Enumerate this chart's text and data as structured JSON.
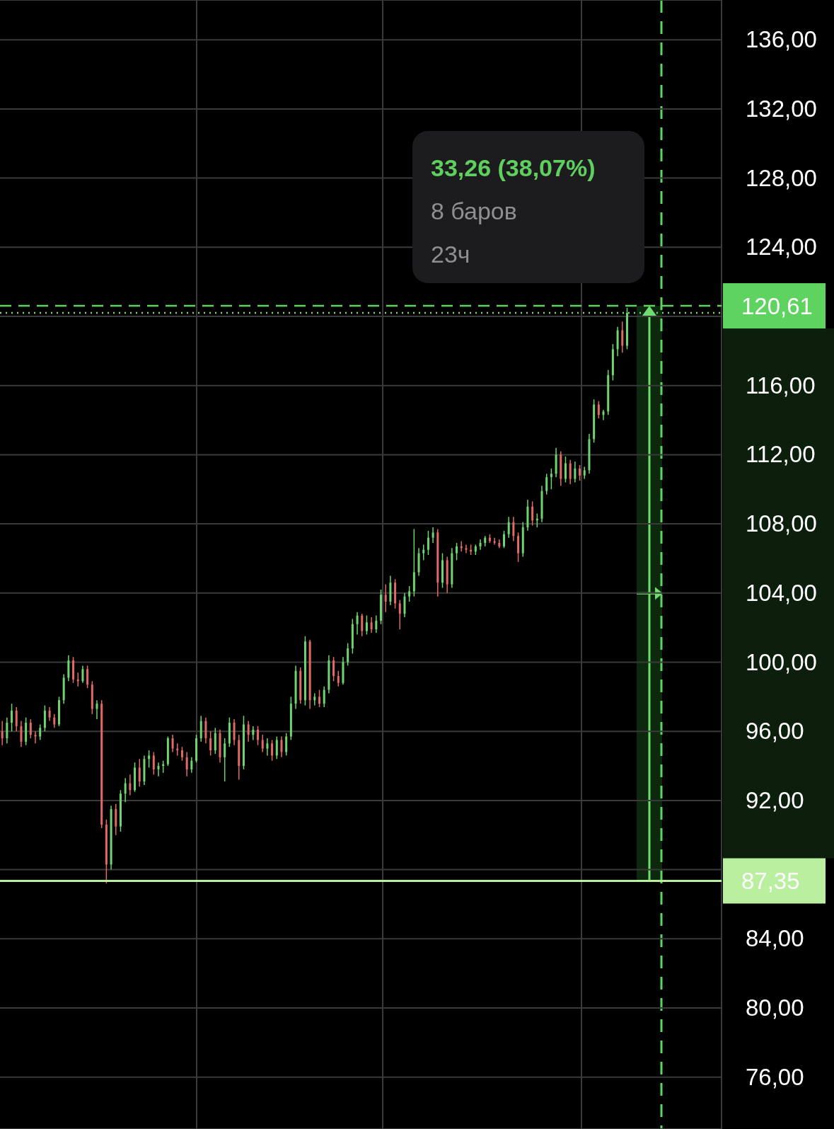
{
  "chart_data": {
    "type": "candlestick",
    "categories": [
      null,
      null,
      null,
      null,
      null,
      null,
      null,
      null,
      null,
      null,
      null,
      null,
      null,
      null,
      null,
      null,
      null,
      null,
      null,
      null,
      null,
      null,
      null,
      null,
      null,
      null,
      null,
      null,
      null,
      null,
      null,
      null,
      null,
      null,
      null,
      null,
      null,
      null,
      null,
      null,
      null,
      null,
      null,
      null,
      null,
      null,
      null,
      null,
      null,
      null,
      null,
      null,
      null,
      null,
      null,
      null,
      null,
      null,
      null,
      null,
      null,
      null,
      null,
      null,
      null,
      null,
      null,
      null,
      null,
      null,
      null,
      null,
      null,
      null,
      null,
      null,
      null,
      null,
      null,
      null,
      null,
      null,
      null,
      null,
      null,
      null,
      null,
      null,
      null,
      null,
      null,
      null,
      null,
      null,
      null,
      null,
      null,
      null,
      null,
      null,
      null,
      null,
      null,
      null,
      null,
      null,
      null,
      null,
      null,
      null,
      null,
      null,
      null,
      null,
      null,
      null,
      null,
      null,
      null,
      null,
      null,
      null,
      null,
      null,
      null,
      null,
      null,
      null,
      null,
      null,
      null,
      null,
      null
    ],
    "ohlc": [
      [
        96.0,
        96.6,
        95.2,
        95.6
      ],
      [
        95.6,
        96.8,
        95.3,
        96.5
      ],
      [
        96.5,
        97.6,
        96.0,
        97.2
      ],
      [
        97.2,
        97.4,
        96.0,
        96.3
      ],
      [
        96.3,
        96.6,
        95.1,
        95.4
      ],
      [
        95.4,
        96.8,
        95.2,
        96.5
      ],
      [
        96.5,
        96.7,
        95.6,
        95.8
      ],
      [
        95.8,
        96.0,
        95.3,
        95.7
      ],
      [
        95.7,
        96.4,
        95.5,
        96.2
      ],
      [
        96.2,
        97.5,
        96.0,
        97.2
      ],
      [
        97.2,
        97.4,
        96.6,
        96.8
      ],
      [
        96.8,
        97.0,
        96.2,
        96.4
      ],
      [
        96.4,
        98.0,
        96.3,
        97.8
      ],
      [
        97.8,
        99.3,
        97.6,
        99.1
      ],
      [
        99.1,
        100.4,
        98.9,
        100.1
      ],
      [
        100.1,
        100.3,
        98.8,
        99.0
      ],
      [
        99.0,
        99.4,
        98.6,
        98.9
      ],
      [
        98.9,
        99.8,
        98.8,
        99.6
      ],
      [
        99.6,
        99.8,
        98.5,
        98.7
      ],
      [
        98.7,
        98.9,
        97.0,
        97.3
      ],
      [
        97.3,
        97.8,
        96.7,
        97.6
      ],
      [
        97.6,
        97.8,
        90.4,
        90.6
      ],
      [
        90.6,
        90.9,
        87.2,
        88.3
      ],
      [
        88.3,
        91.7,
        88.0,
        91.5
      ],
      [
        91.5,
        91.8,
        90.0,
        90.5
      ],
      [
        90.5,
        92.6,
        90.2,
        92.4
      ],
      [
        92.4,
        93.3,
        91.9,
        93.0
      ],
      [
        93.0,
        93.5,
        92.3,
        92.6
      ],
      [
        92.6,
        94.2,
        92.5,
        93.9
      ],
      [
        93.9,
        94.4,
        92.8,
        93.1
      ],
      [
        93.1,
        94.6,
        92.9,
        94.4
      ],
      [
        94.4,
        94.9,
        93.9,
        94.6
      ],
      [
        94.6,
        94.8,
        93.5,
        93.8
      ],
      [
        93.8,
        94.2,
        93.4,
        94.0
      ],
      [
        94.0,
        94.3,
        93.6,
        94.1
      ],
      [
        94.1,
        95.7,
        94.0,
        95.6
      ],
      [
        95.6,
        95.8,
        94.8,
        95.0
      ],
      [
        95.0,
        95.3,
        94.6,
        94.9
      ],
      [
        94.9,
        95.1,
        94.3,
        94.5
      ],
      [
        94.5,
        94.8,
        93.4,
        93.8
      ],
      [
        93.8,
        94.5,
        93.6,
        94.3
      ],
      [
        94.3,
        95.8,
        94.2,
        95.6
      ],
      [
        95.6,
        96.9,
        95.4,
        96.6
      ],
      [
        96.6,
        96.8,
        95.3,
        95.6
      ],
      [
        95.6,
        96.0,
        94.6,
        94.9
      ],
      [
        94.9,
        96.2,
        94.7,
        95.9
      ],
      [
        95.9,
        96.1,
        94.2,
        94.5
      ],
      [
        94.5,
        95.6,
        93.1,
        95.3
      ],
      [
        95.3,
        96.8,
        95.1,
        96.5
      ],
      [
        96.5,
        96.7,
        95.2,
        95.5
      ],
      [
        95.5,
        95.8,
        93.2,
        94.0
      ],
      [
        94.0,
        96.9,
        93.8,
        96.4
      ],
      [
        96.4,
        96.6,
        95.4,
        95.8
      ],
      [
        95.8,
        96.3,
        95.5,
        96.1
      ],
      [
        96.1,
        96.3,
        95.2,
        95.5
      ],
      [
        95.5,
        95.8,
        94.8,
        95.0
      ],
      [
        95.0,
        95.6,
        94.6,
        95.3
      ],
      [
        95.3,
        95.5,
        94.3,
        94.6
      ],
      [
        94.6,
        95.7,
        94.4,
        95.5
      ],
      [
        95.5,
        95.7,
        94.5,
        94.8
      ],
      [
        94.8,
        95.9,
        94.6,
        95.7
      ],
      [
        95.7,
        98.0,
        95.5,
        97.6
      ],
      [
        97.6,
        99.8,
        97.3,
        99.5
      ],
      [
        99.5,
        99.7,
        97.6,
        97.8
      ],
      [
        97.8,
        101.5,
        97.5,
        101.2
      ],
      [
        101.2,
        101.3,
        97.3,
        97.8
      ],
      [
        97.8,
        98.2,
        97.5,
        98.0
      ],
      [
        98.0,
        98.4,
        97.4,
        97.6
      ],
      [
        97.6,
        98.6,
        97.4,
        98.4
      ],
      [
        98.4,
        100.4,
        98.2,
        100.1
      ],
      [
        100.1,
        100.3,
        98.9,
        99.2
      ],
      [
        99.2,
        99.5,
        98.6,
        98.8
      ],
      [
        98.8,
        100.3,
        98.7,
        100.0
      ],
      [
        100.0,
        101.1,
        99.8,
        100.8
      ],
      [
        100.8,
        102.5,
        100.5,
        102.2
      ],
      [
        102.2,
        102.9,
        101.6,
        102.7
      ],
      [
        102.7,
        102.8,
        101.5,
        101.8
      ],
      [
        101.8,
        102.7,
        101.6,
        102.3
      ],
      [
        102.3,
        102.6,
        101.7,
        101.9
      ],
      [
        101.9,
        102.7,
        101.7,
        102.4
      ],
      [
        102.4,
        104.2,
        102.2,
        103.9
      ],
      [
        103.9,
        104.5,
        102.9,
        103.5
      ],
      [
        103.5,
        105.0,
        103.3,
        104.6
      ],
      [
        104.6,
        104.8,
        103.1,
        103.4
      ],
      [
        103.4,
        103.6,
        101.9,
        102.8
      ],
      [
        102.8,
        104.0,
        102.6,
        103.8
      ],
      [
        103.8,
        104.4,
        103.5,
        104.1
      ],
      [
        104.1,
        107.7,
        103.8,
        105.2
      ],
      [
        105.2,
        106.6,
        105.0,
        106.3
      ],
      [
        106.3,
        106.8,
        105.9,
        106.5
      ],
      [
        106.5,
        107.6,
        106.2,
        107.2
      ],
      [
        107.2,
        107.8,
        106.9,
        107.5
      ],
      [
        107.5,
        107.7,
        103.8,
        104.6
      ],
      [
        104.6,
        106.3,
        104.3,
        105.9
      ],
      [
        105.9,
        106.1,
        104.0,
        104.5
      ],
      [
        104.5,
        106.6,
        104.3,
        106.3
      ],
      [
        106.3,
        106.9,
        105.9,
        106.7
      ],
      [
        106.7,
        107.0,
        106.4,
        106.6
      ],
      [
        106.6,
        106.8,
        106.3,
        106.5
      ],
      [
        106.5,
        106.8,
        106.2,
        106.4
      ],
      [
        106.4,
        106.8,
        106.2,
        106.7
      ],
      [
        106.7,
        107.1,
        106.5,
        106.9
      ],
      [
        106.9,
        107.3,
        106.7,
        107.2
      ],
      [
        107.2,
        107.4,
        106.9,
        107.0
      ],
      [
        107.0,
        107.2,
        106.8,
        106.9
      ],
      [
        106.9,
        107.1,
        106.6,
        106.7
      ],
      [
        106.7,
        107.6,
        106.6,
        107.4
      ],
      [
        107.4,
        108.4,
        107.2,
        108.1
      ],
      [
        108.1,
        108.4,
        107.0,
        107.3
      ],
      [
        107.3,
        107.5,
        105.8,
        106.3
      ],
      [
        106.3,
        108.1,
        106.1,
        107.8
      ],
      [
        107.8,
        109.4,
        107.6,
        109.0
      ],
      [
        109.0,
        109.3,
        107.9,
        108.2
      ],
      [
        108.2,
        108.6,
        107.8,
        108.3
      ],
      [
        108.3,
        110.2,
        108.1,
        109.9
      ],
      [
        109.9,
        110.9,
        109.7,
        110.7
      ],
      [
        110.7,
        111.2,
        110.0,
        110.9
      ],
      [
        110.9,
        112.4,
        110.7,
        112.0
      ],
      [
        112.0,
        112.2,
        110.2,
        110.6
      ],
      [
        110.6,
        111.9,
        110.4,
        111.5
      ],
      [
        111.5,
        111.7,
        110.3,
        110.6
      ],
      [
        110.6,
        111.6,
        110.4,
        111.2
      ],
      [
        111.2,
        111.4,
        110.5,
        110.8
      ],
      [
        110.8,
        111.3,
        110.6,
        111.1
      ],
      [
        111.1,
        113.2,
        110.9,
        112.9
      ],
      [
        112.9,
        115.2,
        112.7,
        114.9
      ],
      [
        114.9,
        115.1,
        114.1,
        114.3
      ],
      [
        114.3,
        114.6,
        114.0,
        114.5
      ],
      [
        114.5,
        116.9,
        114.3,
        116.6
      ],
      [
        116.6,
        118.4,
        116.3,
        118.1
      ],
      [
        118.1,
        119.4,
        117.7,
        119.2
      ],
      [
        119.2,
        119.7,
        117.9,
        118.3
      ],
      [
        118.3,
        120.5,
        118.1,
        120.2
      ]
    ],
    "ylim": [
      73,
      138.3
    ],
    "yticks": [
      {
        "value": 76,
        "label": "76,00"
      },
      {
        "value": 80,
        "label": "80,00"
      },
      {
        "value": 84,
        "label": "84,00"
      },
      {
        "value": 88,
        "label": null
      },
      {
        "value": 92,
        "label": "92,00"
      },
      {
        "value": 96,
        "label": "96,00"
      },
      {
        "value": 100,
        "label": "100,00"
      },
      {
        "value": 104,
        "label": "104,00"
      },
      {
        "value": 108,
        "label": "108,00"
      },
      {
        "value": 112,
        "label": "112,00"
      },
      {
        "value": 116,
        "label": "116,00"
      },
      {
        "value": 120,
        "label": null
      },
      {
        "value": 124,
        "label": "124,00"
      },
      {
        "value": 128,
        "label": "128,00"
      },
      {
        "value": 132,
        "label": "132,00"
      },
      {
        "value": 136,
        "label": "136,00"
      }
    ],
    "grid": true,
    "ref_lines": [
      {
        "axis": "y",
        "value": 120.61,
        "label": "120,61",
        "color": "#5fd35f",
        "line_style": "dashed"
      },
      {
        "axis": "y",
        "value": 87.35,
        "label": "87,35",
        "color": "#b9ef9f",
        "line_style": "solid"
      },
      {
        "axis": "y",
        "value": 120.2,
        "color": "#7fd67f",
        "line_style": "dotted"
      }
    ],
    "annotations": [
      "33,26 (38,07%)",
      "8 баров",
      "23ч"
    ]
  }
}
